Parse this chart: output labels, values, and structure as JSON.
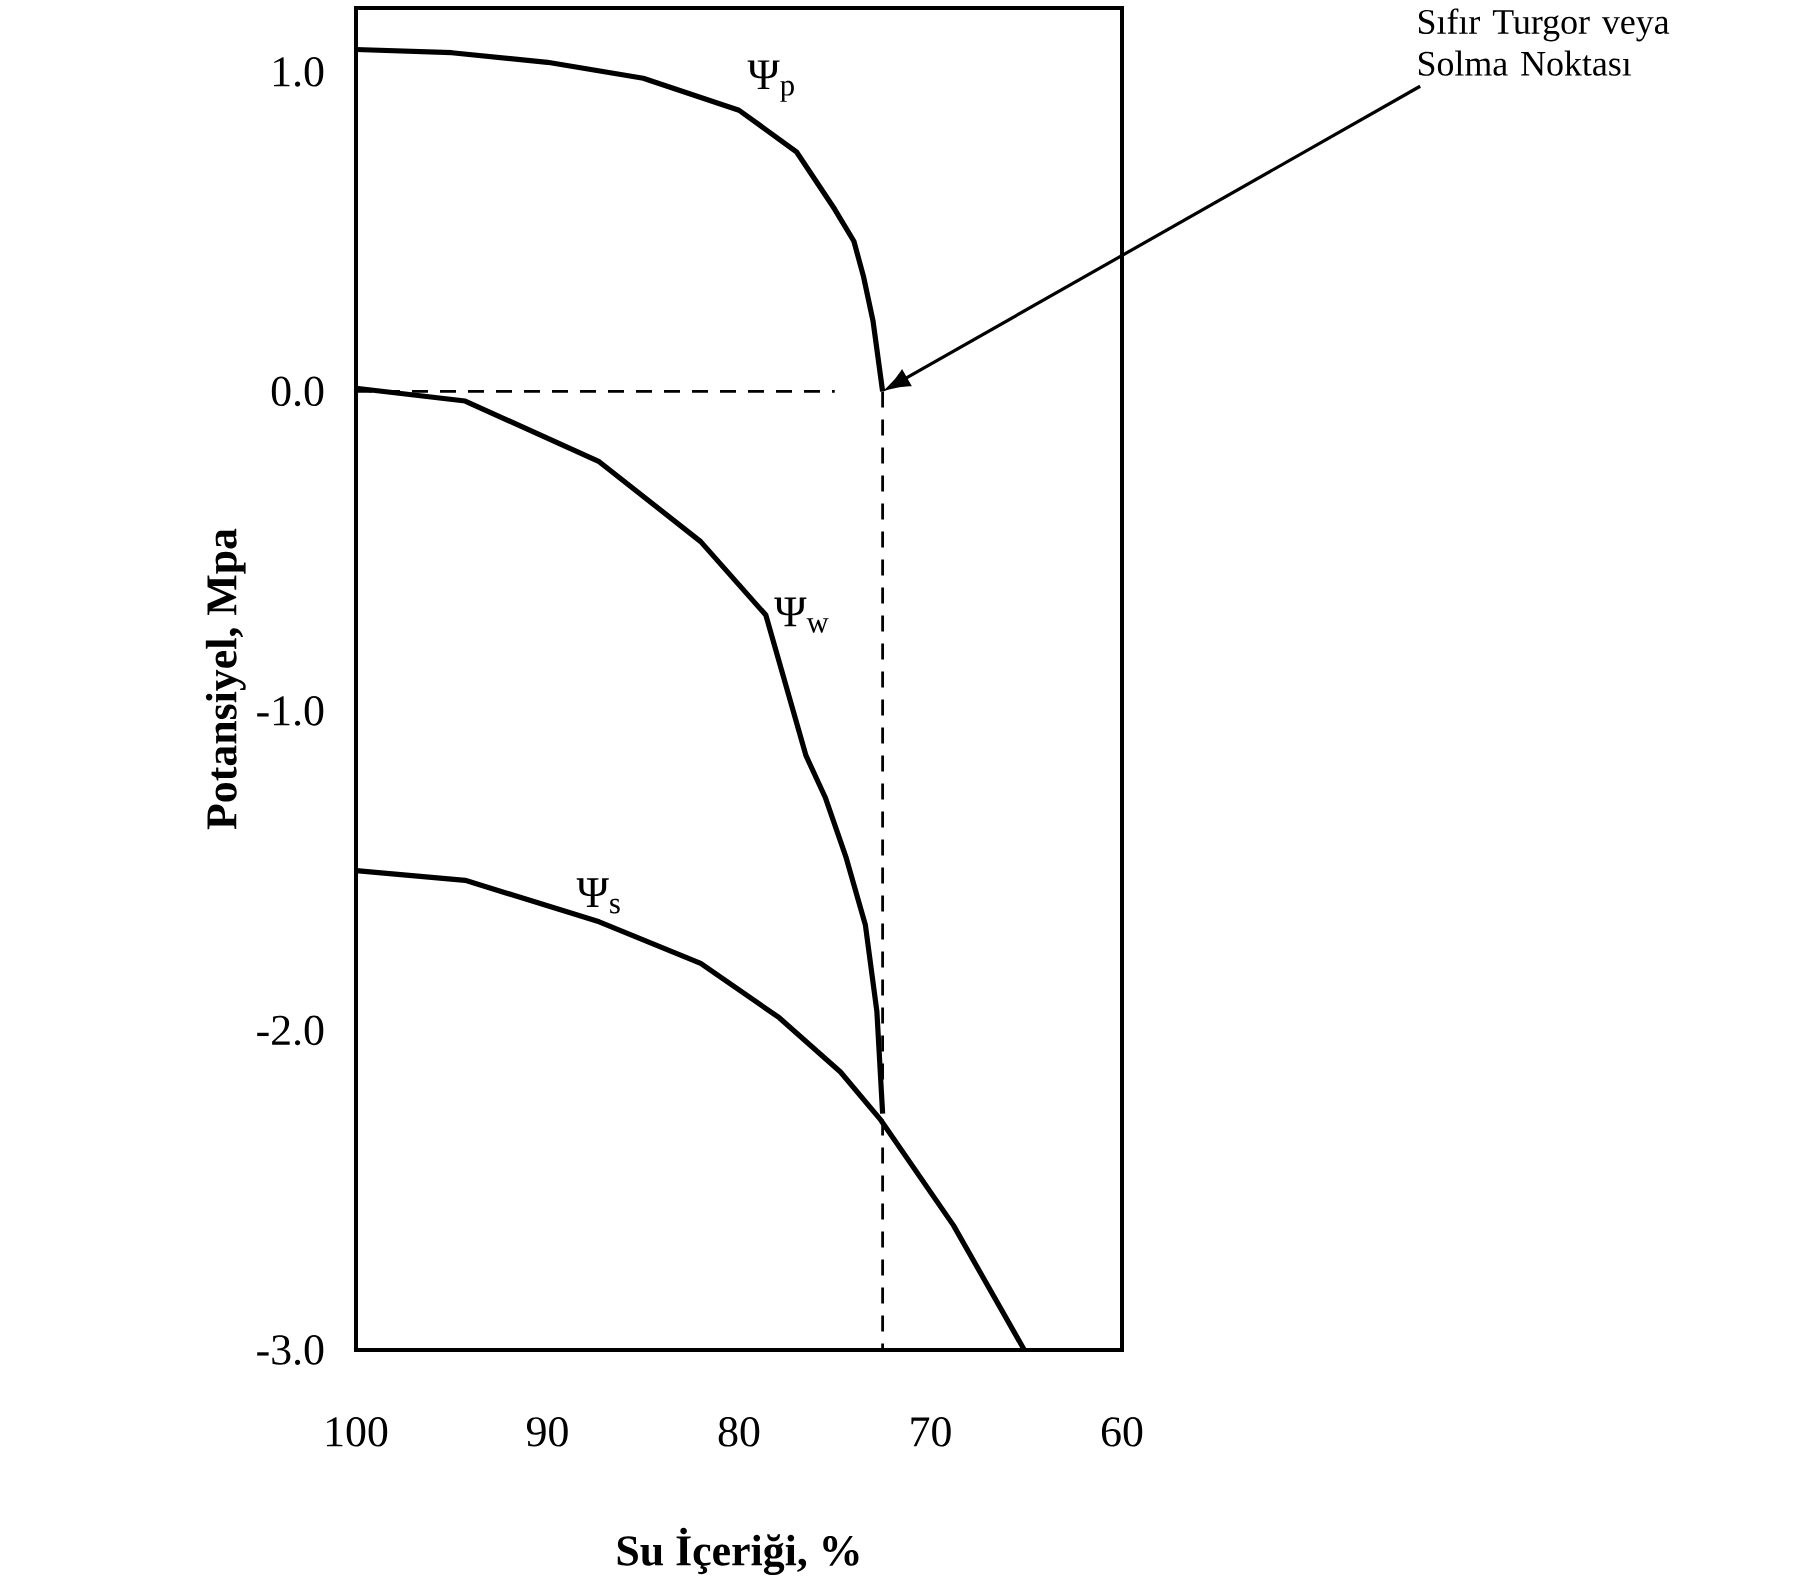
{
  "chart_data": {
    "type": "line",
    "xlabel": "Su İçeriği, %",
    "ylabel": "Potansiyel, Mpa",
    "xlim": [
      100,
      60
    ],
    "ylim": [
      -3,
      1.2
    ],
    "xticks": [
      100,
      90,
      80,
      70,
      60
    ],
    "yticks": [
      {
        "value": 1,
        "label": "1.0"
      },
      {
        "value": 0,
        "label": "0.0"
      },
      {
        "value": -1,
        "label": "-1.0"
      },
      {
        "value": -2,
        "label": "-2.0"
      },
      {
        "value": -3,
        "label": "-3.0"
      }
    ],
    "marker": "none",
    "line_style": "solid",
    "series": [
      {
        "name": "Ψ$_{p}$",
        "color": "#000000",
        "x": [
          100,
          95,
          90,
          85,
          80,
          77,
          75,
          74,
          73.5,
          73,
          72.5
        ],
        "values": [
          1.07,
          1.06,
          1.03,
          0.98,
          0.88,
          0.75,
          0.57,
          0.47,
          0.36,
          0.22,
          0.0
        ]
      },
      {
        "name": "Ψ$_{w}$",
        "color": "#000000",
        "x": [
          100,
          94.3,
          87.3,
          82,
          78.6,
          76.5,
          75.5,
          74.4,
          73.4,
          72.8,
          72.5
        ],
        "values": [
          0.01,
          -0.03,
          -0.22,
          -0.47,
          -0.7,
          -1.14,
          -1.27,
          -1.46,
          -1.67,
          -1.94,
          -2.26
        ]
      },
      {
        "name": "Ψ$_{s}$",
        "color": "#000000",
        "x": [
          100,
          94.3,
          87.3,
          82,
          77.9,
          74.7,
          72.6,
          68.8,
          65.1
        ],
        "values": [
          -1.5,
          -1.53,
          -1.66,
          -1.79,
          -1.96,
          -2.13,
          -2.28,
          -2.61,
          -3.0
        ]
      },
      {
        "color": "#000000",
        "line_style": "dashed",
        "x": [
          100,
          75
        ],
        "values": [
          0,
          0
        ]
      },
      {
        "color": "#000000",
        "line_style": "dashed",
        "x": [
          72.5,
          72.5
        ],
        "values": [
          0,
          -3
        ]
      }
    ],
    "annotations": [
      "Sıfır Turgor veya Solma Noktası"
    ]
  }
}
